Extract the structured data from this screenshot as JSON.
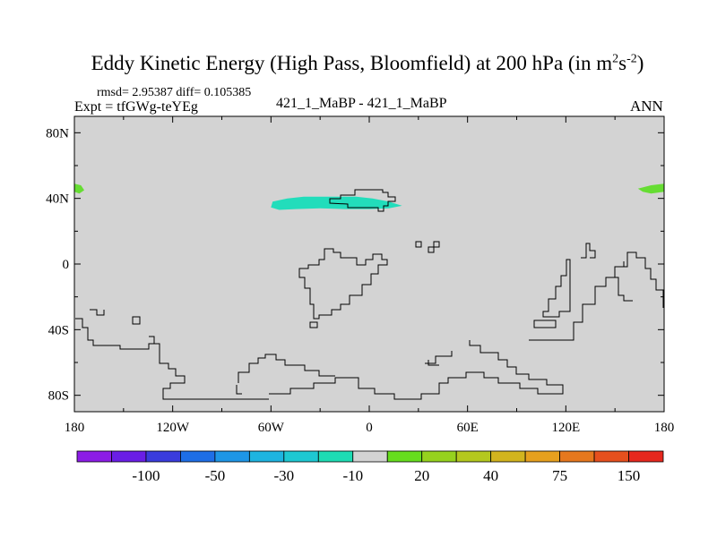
{
  "title": {
    "main": "Eddy Kinetic Energy (High Pass, Bloomfield) at 200 hPa (in m",
    "sup1": "2",
    "mid": "s",
    "sup2": "-2",
    "end": ")"
  },
  "stats_text": "rmsd= 2.95387  diff= 0.105385",
  "experiment_text": "Expt = tfGWg-teYEg",
  "case_text": "421_1_MaBP - 421_1_MaBP",
  "season_text": "ANN",
  "map": {
    "projection": "cylindrical-equidistant",
    "lon_range": [
      -180,
      180
    ],
    "lat_range": [
      -90,
      90
    ],
    "background_fill": "#d3d3d3",
    "lat_ticks": [
      {
        "lat": 80,
        "label": "80N"
      },
      {
        "lat": 40,
        "label": "40N"
      },
      {
        "lat": 0,
        "label": "0"
      },
      {
        "lat": -40,
        "label": "40S"
      },
      {
        "lat": -80,
        "label": "80S"
      }
    ],
    "lon_ticks": [
      {
        "lon": -180,
        "label": "180"
      },
      {
        "lon": -120,
        "label": "120W"
      },
      {
        "lon": -60,
        "label": "60W"
      },
      {
        "lon": 0,
        "label": "0"
      },
      {
        "lon": 60,
        "label": "60E"
      },
      {
        "lon": 120,
        "label": "120E"
      },
      {
        "lon": 180,
        "label": "180"
      }
    ],
    "anomaly_patches": [
      {
        "color": "#66dd33",
        "lonlat": [
          [
            -180,
            49
          ],
          [
            -176,
            48
          ],
          [
            -174,
            45
          ],
          [
            -177,
            43
          ],
          [
            -180,
            44
          ]
        ]
      },
      {
        "color": "#66dd33",
        "lonlat": [
          [
            164,
            46
          ],
          [
            172,
            48
          ],
          [
            180,
            49
          ],
          [
            180,
            44
          ],
          [
            172,
            43
          ],
          [
            167,
            44
          ]
        ]
      },
      {
        "color": "#22ddbb",
        "lonlat": [
          [
            -59,
            38
          ],
          [
            -50,
            40
          ],
          [
            -40,
            41
          ],
          [
            -30,
            41
          ],
          [
            -18,
            41
          ],
          [
            -8,
            41
          ],
          [
            2,
            40
          ],
          [
            12,
            38
          ],
          [
            20,
            35.5
          ],
          [
            12,
            34
          ],
          [
            0,
            33.5
          ],
          [
            -15,
            33.5
          ],
          [
            -30,
            34
          ],
          [
            -45,
            33.5
          ],
          [
            -55,
            33
          ],
          [
            -60,
            34.5
          ]
        ]
      }
    ]
  },
  "colorbar": {
    "colors": [
      "#8c1ce6",
      "#6a1ee6",
      "#3a3cdd",
      "#1e6ee6",
      "#1e96e6",
      "#1eb4e0",
      "#1ec8d2",
      "#1edcb4",
      "#d3d3d3",
      "#66dd1e",
      "#96d21e",
      "#b4c81e",
      "#d2b41e",
      "#e6a01e",
      "#e6781e",
      "#e6501e",
      "#e6281e"
    ],
    "labels": [
      "-100",
      "-50",
      "-30",
      "-10",
      "20",
      "40",
      "75",
      "150"
    ]
  }
}
